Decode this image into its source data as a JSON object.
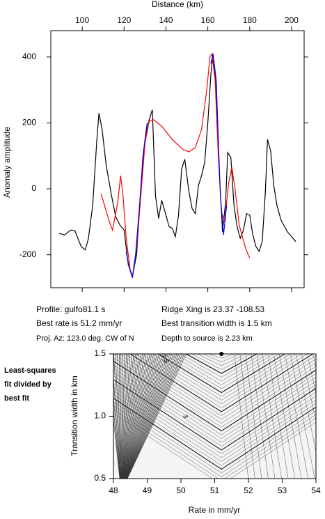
{
  "chart_data": [
    {
      "type": "line",
      "title": "Distance (km)",
      "y_label": "Anomaly amplitude",
      "xlim": [
        85,
        206
      ],
      "xticks": [
        100,
        120,
        140,
        160,
        180,
        200
      ],
      "ylim": [
        -300,
        480
      ],
      "yticks": [
        -200,
        0,
        200,
        400
      ],
      "series": [
        {
          "color": "#000000",
          "x": [
            89,
            91.5,
            94.5,
            96.5,
            99.5,
            101.5,
            103,
            105,
            107,
            108,
            109.5,
            111.5,
            114,
            116,
            118,
            120,
            122,
            124,
            126,
            128,
            130,
            132,
            133.5,
            135,
            136.5,
            138,
            140,
            141.5,
            143,
            144.5,
            146,
            147.5,
            149,
            151,
            152.5,
            154,
            155.5,
            157,
            158.5,
            160,
            161.5,
            162.5,
            164,
            165.5,
            167,
            168.5,
            169.5,
            171,
            172.5,
            174,
            175.5,
            177,
            178.5,
            180,
            181.5,
            183,
            184.5,
            186,
            187.5,
            188.5,
            190,
            191.5,
            193,
            195,
            198,
            202
          ],
          "values": [
            -135,
            -140,
            -125,
            -127,
            -175,
            -185,
            -150,
            -50,
            150,
            230,
            180,
            70,
            -20,
            -85,
            -110,
            -125,
            -230,
            -265,
            -200,
            0,
            150,
            210,
            240,
            -20,
            -90,
            -35,
            -80,
            -115,
            -120,
            -145,
            -80,
            60,
            90,
            -10,
            -60,
            -75,
            10,
            40,
            80,
            200,
            350,
            410,
            300,
            50,
            -130,
            -40,
            110,
            95,
            -50,
            -115,
            -150,
            -125,
            -75,
            -80,
            -140,
            -175,
            -190,
            -160,
            -10,
            150,
            115,
            10,
            -50,
            -95,
            -130,
            -160
          ]
        },
        {
          "color": "#ff0000",
          "x": [
            109,
            113,
            114.5,
            117,
            118.3,
            119.5,
            121,
            123,
            124,
            126,
            128,
            130,
            132,
            134,
            138,
            143,
            148,
            151,
            154,
            157,
            159.5,
            161,
            162,
            163.5,
            165,
            166.5,
            168,
            170,
            171.5,
            173,
            175,
            178,
            180
          ],
          "values": [
            -15,
            -100,
            -125,
            -40,
            40,
            -20,
            -150,
            -250,
            -265,
            -180,
            -20,
            140,
            205,
            210,
            190,
            150,
            120,
            112,
            125,
            180,
            300,
            400,
            410,
            330,
            100,
            -70,
            -100,
            20,
            65,
            0,
            -110,
            -180,
            -210
          ]
        },
        {
          "color": "#0000ff",
          "x": [
            121,
            122.5,
            124,
            125.5,
            127.5,
            129,
            131,
            null,
            161.5,
            162.5,
            164,
            165,
            166,
            167.5,
            169
          ],
          "values": [
            -190,
            -240,
            -270,
            -200,
            -40,
            100,
            200,
            null,
            380,
            410,
            330,
            150,
            -20,
            -140,
            -50
          ]
        }
      ]
    },
    {
      "type": "contour",
      "title": "Least-squares fit divided by best fit",
      "x_label": "Rate in mm/yr",
      "y_label": "Transition width in km",
      "xlim": [
        48,
        54
      ],
      "xticks": [
        48,
        49,
        50,
        51,
        52,
        53,
        54
      ],
      "ylim": [
        0.5,
        1.5
      ],
      "yticks": [
        {
          "value": 0.5,
          "label": "0.5"
        },
        {
          "value": 1,
          "label": "1.0"
        },
        {
          "value": 1.5,
          "label": "1.5"
        }
      ],
      "contour_labels": [
        1.5,
        3
      ],
      "best_fit": {
        "x": 51.2,
        "y": 1.5
      }
    }
  ],
  "info": {
    "profile": "Profile: gulfo81.1 s",
    "ridge": "Ridge Xing is 23.37 -108.53",
    "rate": "Best rate is 51.2 mm/yr",
    "width": "Best transition width is 1.5 km",
    "azimuth": "Proj. Az: 123.0 deg. CW of N",
    "depth": "Depth to source is   2.23 km"
  }
}
